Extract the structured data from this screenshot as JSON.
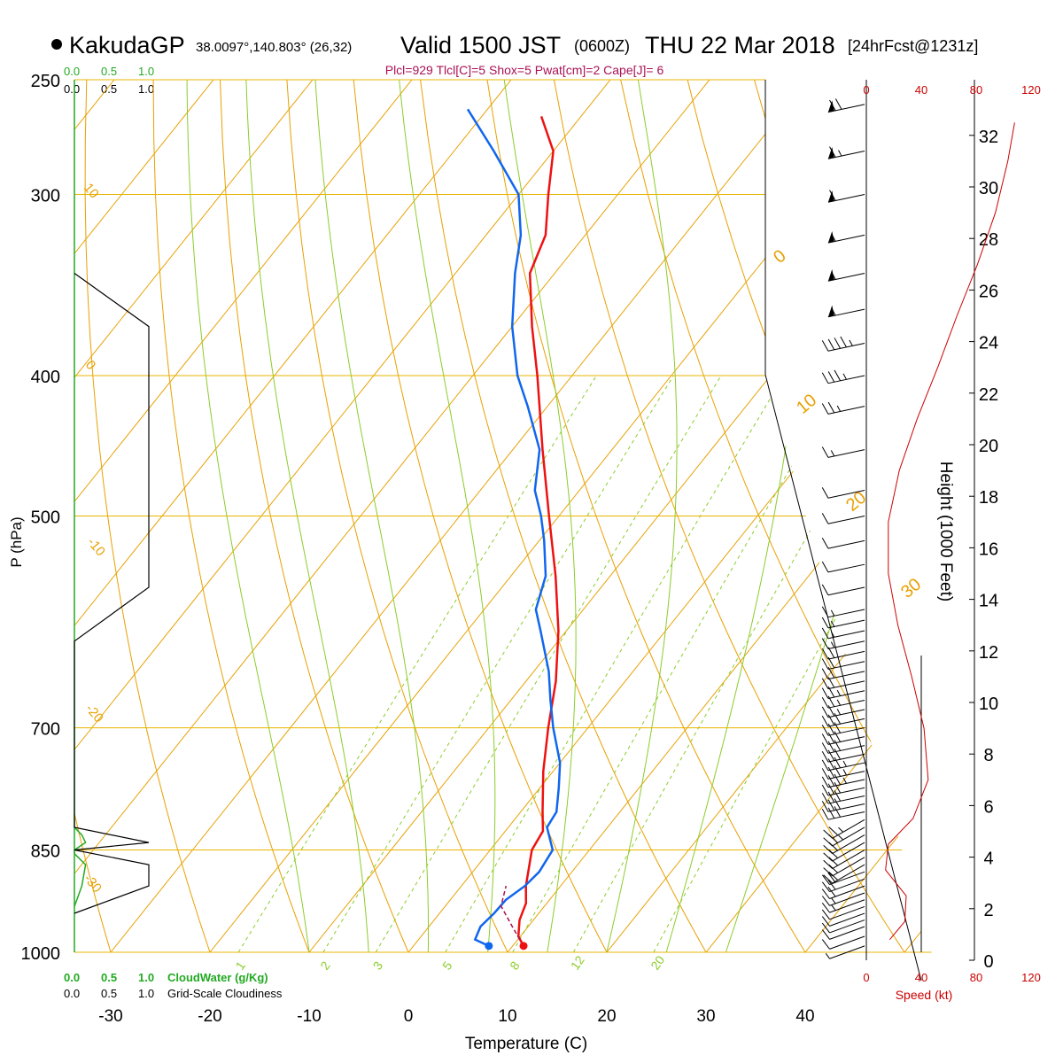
{
  "header": {
    "station": "KakudaGP",
    "coords": "38.0097°,140.803° (26,32)",
    "valid": "Valid 1500 JST",
    "utc": "(0600Z)",
    "date": "THU 22 Mar 2018",
    "forecast": "[24hrFcst@1231z]",
    "indices": "Plcl=929 Tlcl[C]=5 Shox=5 Pwat[cm]=2 Cape[J]= 6"
  },
  "axes": {
    "pressure_label": "P (hPa)",
    "temperature_label": "Temperature (C)",
    "height_label": "Height (1000 Feet)",
    "speed_label": "Speed (kt)",
    "cloudwater_label": "CloudWater (g/Kg)",
    "cloudiness_label": "Grid-Scale Cloudiness",
    "pressure_ticks": [
      "250",
      "300",
      "400",
      "500",
      "700",
      "850",
      "1000"
    ],
    "temp_ticks": [
      "-30",
      "-20",
      "-10",
      "0",
      "10",
      "20",
      "30",
      "40"
    ],
    "height_ticks": [
      "0",
      "2",
      "4",
      "6",
      "8",
      "10",
      "12",
      "14",
      "16",
      "18",
      "20",
      "22",
      "24",
      "26",
      "28",
      "30",
      "32"
    ],
    "speed_ticks": [
      "0",
      "40",
      "80",
      "120"
    ],
    "cloud_ticks": [
      "0.0",
      "0.5",
      "1.0"
    ],
    "isotherm_labels": [
      "10",
      "0",
      "-10",
      "-20",
      "-30"
    ],
    "dry_adiabat_labels": [
      "0",
      "10",
      "20",
      "30"
    ],
    "mixing_ratio_labels": [
      "1",
      "2",
      "3",
      "5",
      "8",
      "12",
      "20"
    ]
  },
  "colors": {
    "temperature": "#ee1111",
    "dewpoint": "#1166ee",
    "isobar": "#e8b400",
    "isotherm": "#e8a000",
    "dry_adiabat": "#8ccc2a",
    "mixing_ratio": "#8ccc2a",
    "cloud": "#22aa22",
    "parcel": "#aa1155",
    "speed": "#cc0000",
    "header_indices": "#aa1155"
  },
  "chart_data": {
    "type": "skew-t",
    "title": "Valid 1500 JST (0600Z) THU 22 Mar 2018",
    "xlabel": "Temperature (C)",
    "ylabel": "P (hPa)",
    "xlim": [
      -30,
      40
    ],
    "ylim": [
      1000,
      250
    ],
    "y_scale": "log",
    "temperature": {
      "p": [
        990,
        975,
        950,
        925,
        900,
        850,
        825,
        800,
        750,
        700,
        650,
        600,
        550,
        500,
        450,
        400,
        370,
        340,
        320,
        300,
        280,
        265
      ],
      "t": [
        11.1,
        9.8,
        8.6,
        7.9,
        6.5,
        4.2,
        3.8,
        2.2,
        -1.0,
        -4.0,
        -7.0,
        -10.8,
        -15.5,
        -21.0,
        -27.0,
        -33.5,
        -38.0,
        -42.5,
        -44.0,
        -47.0,
        -50.0,
        -54.0
      ]
    },
    "dewpoint": {
      "p": [
        990,
        980,
        960,
        940,
        920,
        900,
        880,
        850,
        820,
        800,
        770,
        740,
        700,
        670,
        640,
        600,
        580,
        550,
        520,
        500,
        480,
        450,
        420,
        400,
        370,
        340,
        320,
        300,
        280,
        262
      ],
      "td": [
        7.6,
        5.7,
        5.2,
        5.5,
        5.6,
        6.4,
        6.7,
        6.3,
        3.9,
        3.6,
        1.9,
        0.0,
        -3.5,
        -6.0,
        -8.5,
        -12.6,
        -14.8,
        -16.5,
        -19.5,
        -21.8,
        -24.5,
        -27.3,
        -32.0,
        -35.5,
        -40.0,
        -44.0,
        -46.5,
        -50.0,
        -56.0,
        -62.0
      ]
    },
    "parcel": {
      "p": [
        990,
        960,
        929,
        900
      ],
      "t": [
        11.1,
        8.4,
        5.6,
        4.5
      ]
    },
    "height_kft": [
      0,
      2,
      4,
      6,
      8,
      10,
      12,
      14,
      16,
      18,
      20,
      22,
      24,
      26,
      28,
      30,
      32
    ],
    "wind_speed_kt": {
      "height_kft": [
        0.8,
        1.5,
        2.5,
        3.5,
        4.5,
        5.5,
        7,
        9,
        11,
        13,
        15,
        17,
        19,
        21,
        23,
        25,
        27,
        29,
        31,
        32.5
      ],
      "speed": [
        17,
        28,
        29,
        14,
        16,
        34,
        45,
        42,
        33,
        23,
        16,
        16,
        24,
        37,
        52,
        66,
        81,
        94,
        103,
        108
      ]
    },
    "wind_barbs": {
      "pressure": [
        990,
        975,
        960,
        950,
        940,
        930,
        920,
        910,
        900,
        890,
        880,
        870,
        860,
        850,
        840,
        830,
        820,
        810,
        800,
        790,
        780,
        770,
        760,
        750,
        740,
        730,
        720,
        710,
        700,
        690,
        680,
        670,
        660,
        650,
        640,
        630,
        620,
        610,
        600,
        590,
        580,
        560,
        540,
        520,
        500,
        480,
        450,
        420,
        400,
        380,
        360,
        340,
        320,
        300,
        280,
        260
      ],
      "speed_kt": [
        5,
        10,
        10,
        10,
        10,
        10,
        15,
        15,
        20,
        20,
        20,
        20,
        20,
        20,
        20,
        20,
        25,
        25,
        30,
        30,
        30,
        30,
        35,
        35,
        35,
        30,
        30,
        30,
        30,
        30,
        25,
        25,
        25,
        20,
        20,
        20,
        20,
        15,
        15,
        15,
        15,
        10,
        10,
        10,
        10,
        10,
        15,
        25,
        35,
        45,
        55,
        55,
        55,
        60,
        65,
        70
      ]
    },
    "cloud_water_gkg": {
      "pressure": [
        820,
        830,
        840,
        850,
        855,
        870,
        900,
        930
      ],
      "value": [
        0.0,
        0.1,
        0.15,
        0.0,
        0.0,
        0.15,
        0.1,
        0.0
      ]
    },
    "cloudiness": {
      "pressure": [
        340,
        370,
        560,
        610,
        820,
        840,
        850,
        870,
        900,
        940
      ],
      "value": [
        0.0,
        1.0,
        1.0,
        0.0,
        0.0,
        1.0,
        0.0,
        1.0,
        1.0,
        0.0
      ]
    }
  }
}
